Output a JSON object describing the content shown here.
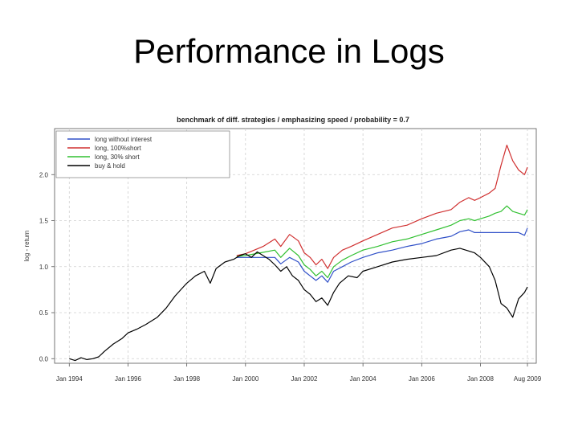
{
  "slide": {
    "title": "Performance in Logs"
  },
  "chart_data": {
    "type": "line",
    "title": "benchmark of diff. strategies / emphasizing speed / probability = 0.7",
    "xlabel": "",
    "ylabel": "log - return",
    "xlim": [
      1993.5,
      2009.9
    ],
    "ylim": [
      -0.05,
      2.5
    ],
    "yticks": [
      0.0,
      0.5,
      1.0,
      1.5,
      2.0
    ],
    "ytick_labels": [
      "0.0",
      "0.5",
      "1.0",
      "1.5",
      "2.0"
    ],
    "xticks": [
      1994,
      1996,
      1998,
      2000,
      2002,
      2004,
      2006,
      2008,
      2009.6
    ],
    "xtick_labels": [
      "Jan 1994",
      "Jan 1996",
      "Jan 1998",
      "Jan 2000",
      "Jan 2002",
      "Jan 2004",
      "Jan 2006",
      "Jan 2008",
      "Aug 2009"
    ],
    "grid": true,
    "legend_position": "top-left",
    "series": [
      {
        "name": "long without interest",
        "color": "#3050c8",
        "x": [
          1999.7,
          2000.0,
          2000.5,
          2001.0,
          2001.2,
          2001.5,
          2001.8,
          2002.0,
          2002.2,
          2002.4,
          2002.6,
          2002.8,
          2003.0,
          2003.3,
          2003.6,
          2004.0,
          2004.5,
          2005.0,
          2005.5,
          2006.0,
          2006.5,
          2007.0,
          2007.3,
          2007.6,
          2007.8,
          2008.0,
          2008.5,
          2009.0,
          2009.3,
          2009.5,
          2009.6
        ],
        "y": [
          1.1,
          1.1,
          1.1,
          1.1,
          1.03,
          1.1,
          1.05,
          0.95,
          0.9,
          0.85,
          0.9,
          0.83,
          0.95,
          1.0,
          1.05,
          1.1,
          1.15,
          1.18,
          1.22,
          1.25,
          1.3,
          1.33,
          1.38,
          1.4,
          1.37,
          1.37,
          1.37,
          1.37,
          1.37,
          1.34,
          1.42
        ]
      },
      {
        "name": "long, 100%short",
        "color": "#d03030",
        "x": [
          1999.7,
          2000.0,
          2000.3,
          2000.6,
          2001.0,
          2001.2,
          2001.5,
          2001.8,
          2002.0,
          2002.2,
          2002.4,
          2002.6,
          2002.8,
          2003.0,
          2003.3,
          2003.6,
          2004.0,
          2004.5,
          2005.0,
          2005.5,
          2006.0,
          2006.5,
          2007.0,
          2007.3,
          2007.6,
          2007.8,
          2008.0,
          2008.3,
          2008.5,
          2008.7,
          2008.9,
          2009.1,
          2009.3,
          2009.5,
          2009.6
        ],
        "y": [
          1.12,
          1.14,
          1.18,
          1.22,
          1.3,
          1.22,
          1.35,
          1.28,
          1.15,
          1.1,
          1.02,
          1.08,
          0.98,
          1.1,
          1.18,
          1.22,
          1.28,
          1.35,
          1.42,
          1.45,
          1.52,
          1.58,
          1.62,
          1.7,
          1.75,
          1.72,
          1.75,
          1.8,
          1.85,
          2.1,
          2.32,
          2.15,
          2.05,
          2.0,
          2.08
        ]
      },
      {
        "name": "long, 30% short",
        "color": "#30c030",
        "x": [
          1999.7,
          2000.0,
          2000.5,
          2001.0,
          2001.2,
          2001.5,
          2001.8,
          2002.0,
          2002.2,
          2002.4,
          2002.6,
          2002.8,
          2003.0,
          2003.3,
          2003.6,
          2004.0,
          2004.5,
          2005.0,
          2005.5,
          2006.0,
          2006.5,
          2007.0,
          2007.3,
          2007.6,
          2007.8,
          2008.0,
          2008.3,
          2008.5,
          2008.7,
          2008.9,
          2009.1,
          2009.3,
          2009.5,
          2009.6
        ],
        "y": [
          1.11,
          1.12,
          1.15,
          1.18,
          1.1,
          1.2,
          1.12,
          1.02,
          0.97,
          0.9,
          0.95,
          0.88,
          1.0,
          1.07,
          1.12,
          1.18,
          1.22,
          1.27,
          1.3,
          1.35,
          1.4,
          1.45,
          1.5,
          1.52,
          1.5,
          1.52,
          1.55,
          1.58,
          1.6,
          1.66,
          1.6,
          1.58,
          1.56,
          1.62
        ]
      },
      {
        "name": "buy & hold",
        "color": "#000000",
        "x": [
          1994.0,
          1994.2,
          1994.4,
          1994.6,
          1994.8,
          1995.0,
          1995.2,
          1995.5,
          1995.8,
          1996.0,
          1996.3,
          1996.6,
          1997.0,
          1997.3,
          1997.6,
          1998.0,
          1998.3,
          1998.6,
          1998.8,
          1999.0,
          1999.3,
          1999.6,
          1999.8,
          2000.0,
          2000.2,
          2000.4,
          2000.6,
          2000.8,
          2001.0,
          2001.2,
          2001.4,
          2001.6,
          2001.8,
          2002.0,
          2002.2,
          2002.4,
          2002.6,
          2002.8,
          2003.0,
          2003.2,
          2003.5,
          2003.8,
          2004.0,
          2004.5,
          2005.0,
          2005.5,
          2006.0,
          2006.5,
          2007.0,
          2007.3,
          2007.6,
          2007.8,
          2008.0,
          2008.3,
          2008.5,
          2008.7,
          2008.9,
          2009.1,
          2009.3,
          2009.5,
          2009.6
        ],
        "y": [
          0.0,
          -0.02,
          0.01,
          -0.01,
          0.0,
          0.02,
          0.08,
          0.16,
          0.22,
          0.28,
          0.32,
          0.37,
          0.45,
          0.55,
          0.68,
          0.82,
          0.9,
          0.95,
          0.82,
          0.98,
          1.05,
          1.08,
          1.12,
          1.14,
          1.1,
          1.16,
          1.12,
          1.08,
          1.02,
          0.95,
          1.0,
          0.9,
          0.85,
          0.75,
          0.7,
          0.62,
          0.66,
          0.58,
          0.72,
          0.82,
          0.9,
          0.88,
          0.95,
          1.0,
          1.05,
          1.08,
          1.1,
          1.12,
          1.18,
          1.2,
          1.17,
          1.15,
          1.1,
          1.0,
          0.85,
          0.6,
          0.55,
          0.45,
          0.65,
          0.72,
          0.78
        ]
      }
    ]
  }
}
